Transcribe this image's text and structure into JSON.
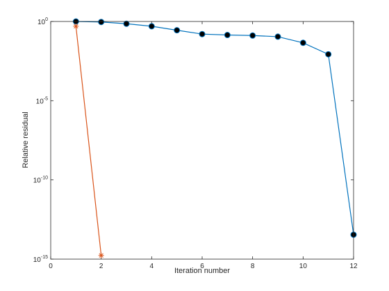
{
  "chart_data": {
    "type": "line",
    "xlabel": "Iteration number",
    "ylabel": "Relative residual",
    "xlim": [
      0,
      12
    ],
    "ylim": [
      1e-15,
      1
    ],
    "y_scale": "log",
    "grid": false,
    "legend": "none",
    "x_ticks": [
      0,
      2,
      4,
      6,
      8,
      10,
      12
    ],
    "y_ticks": [
      {
        "value": 1,
        "base": "10",
        "exp": "0"
      },
      {
        "value": 1e-05,
        "base": "10",
        "exp": "-5"
      },
      {
        "value": 1e-10,
        "base": "10",
        "exp": "-10"
      },
      {
        "value": 1e-15,
        "base": "10",
        "exp": "-15"
      }
    ],
    "series": [
      {
        "color": "#0072BD",
        "marker": "filled-circle",
        "marker_fill": "#000000",
        "x": [
          1,
          2,
          3,
          4,
          5,
          6,
          7,
          8,
          9,
          10,
          11,
          12
        ],
        "y": [
          1.0,
          0.93,
          0.72,
          0.5,
          0.28,
          0.16,
          0.14,
          0.13,
          0.11,
          0.045,
          0.0085,
          3.5e-14
        ]
      },
      {
        "color": "#D95319",
        "marker": "asterisk",
        "x": [
          1,
          2
        ],
        "y": [
          0.5,
          1.7e-15
        ]
      }
    ]
  }
}
